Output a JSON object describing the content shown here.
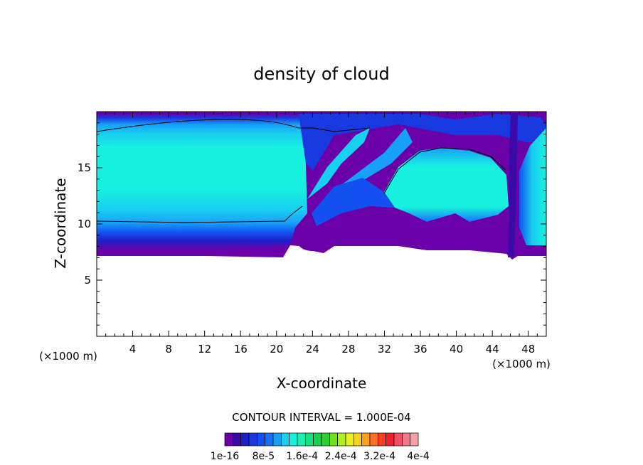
{
  "chart_data": {
    "type": "heatmap",
    "title": "density of cloud",
    "xlabel": "X-coordinate",
    "ylabel": "Z-coordinate",
    "x_unit": "(×1000 m)",
    "y_unit": "(×1000 m)",
    "xlim": [
      0,
      50
    ],
    "ylim": [
      0,
      20
    ],
    "x_ticks": [
      4,
      8,
      12,
      16,
      20,
      24,
      28,
      32,
      36,
      40,
      44,
      48
    ],
    "y_ticks": [
      5,
      10,
      15
    ],
    "contour_label": "CONTOUR INTERVAL = 1.000E-04",
    "colorbar": {
      "min": 1e-16,
      "max": 0.0004,
      "tick_labels": [
        "1e-16",
        "8e-5",
        "1.6e-4",
        "2.4e-4",
        "3.2e-4",
        "4e-4"
      ],
      "colors": [
        "#6a00a8",
        "#3a0aa8",
        "#2020c8",
        "#1838e0",
        "#1450f0",
        "#1870f8",
        "#18a0f8",
        "#18d0f0",
        "#18f0e0",
        "#18f0b0",
        "#18e080",
        "#18d050",
        "#30d030",
        "#70e020",
        "#b0f020",
        "#e8f020",
        "#f8d020",
        "#f8a020",
        "#f87020",
        "#f84020",
        "#f02030",
        "#f05060",
        "#f07888",
        "#f8a0a8"
      ]
    },
    "regions": [
      {
        "name": "main-cloud-layer",
        "level": "~1.2e-4",
        "x_range": [
          0,
          21
        ],
        "z_range": [
          7,
          19.5
        ]
      },
      {
        "name": "right-anvil",
        "level": "~1.2e-4",
        "x_range": [
          31,
          45
        ],
        "z_range": [
          9.5,
          16
        ]
      },
      {
        "name": "tilted-plume",
        "level": "~1e-4",
        "x_range": [
          21,
          36
        ],
        "z_range": [
          11,
          18.5
        ]
      },
      {
        "name": "narrow-column",
        "level": "low",
        "x_range": [
          45.5,
          46.5
        ],
        "z_range": [
          7,
          19
        ]
      },
      {
        "name": "far-right-cell",
        "level": "~1e-4",
        "x_range": [
          47,
          50
        ],
        "z_range": [
          8.5,
          18
        ]
      },
      {
        "name": "cloud-base",
        "level": "low",
        "x_range": [
          0,
          50
        ],
        "z_range": [
          7,
          8.5
        ]
      }
    ]
  }
}
